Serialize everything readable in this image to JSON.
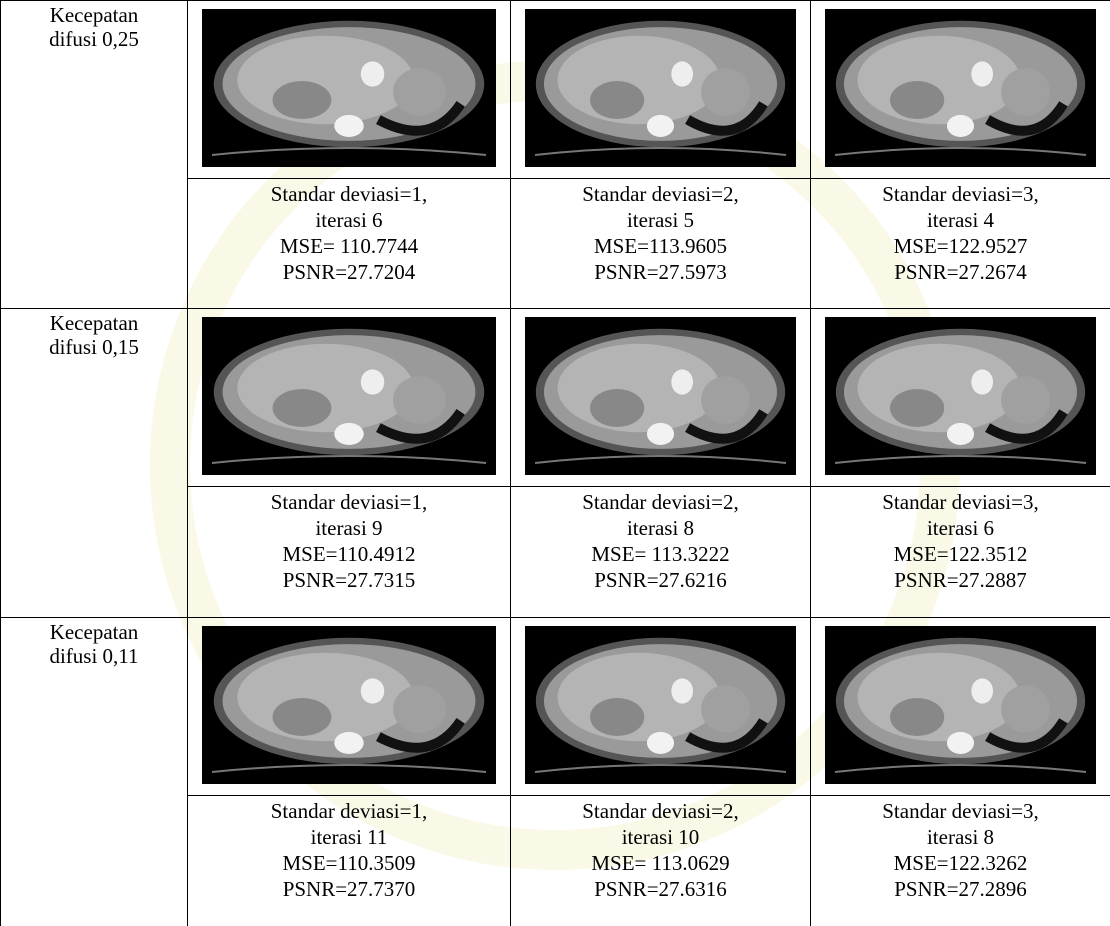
{
  "table": {
    "rows": [
      {
        "label": [
          "Kecepatan",
          "difusi 0,25"
        ],
        "cells": [
          [
            "Standar deviasi=1,",
            "iterasi 6",
            "MSE= 110.7744",
            "PSNR=27.7204"
          ],
          [
            "Standar deviasi=2,",
            "iterasi 5",
            "MSE=113.9605",
            "PSNR=27.5973"
          ],
          [
            "Standar deviasi=3,",
            "iterasi 4",
            "MSE=122.9527",
            "PSNR=27.2674"
          ]
        ]
      },
      {
        "label": [
          "Kecepatan",
          "difusi 0,15"
        ],
        "cells": [
          [
            "Standar deviasi=1,",
            "iterasi 9",
            "MSE=110.4912",
            "PSNR=27.7315"
          ],
          [
            "Standar deviasi=2,",
            "iterasi 8",
            "MSE= 113.3222",
            "PSNR=27.6216"
          ],
          [
            "Standar deviasi=3,",
            "iterasi 6",
            "MSE=122.3512",
            "PSNR=27.2887"
          ]
        ]
      },
      {
        "label": [
          "Kecepatan",
          "difusi 0,11"
        ],
        "cells": [
          [
            "Standar deviasi=1,",
            "iterasi 11",
            "MSE=110.3509",
            "PSNR=27.7370"
          ],
          [
            "Standar deviasi=2,",
            "iterasi 10",
            "MSE= 113.0629",
            "PSNR=27.6316"
          ],
          [
            "Standar deviasi=3,",
            "iterasi 8",
            "MSE=122.3262",
            "PSNR=27.2896"
          ]
        ]
      }
    ]
  }
}
